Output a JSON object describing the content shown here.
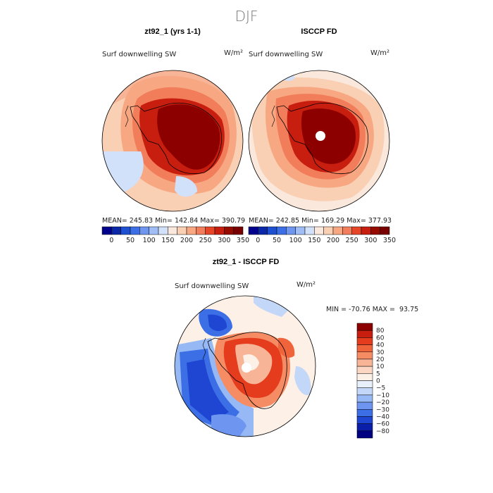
{
  "page": {
    "season": "DJF"
  },
  "panels": [
    {
      "title": "zt92_1 (yrs 1-1)",
      "variable": "Surf downwelling SW",
      "units": "W/m²",
      "stats": {
        "mean_label": "MEAN=",
        "mean": "245.83",
        "min_label": "Min=",
        "min": "142.84",
        "max_label": "Max=",
        "max": "390.79"
      },
      "colorbar": {
        "ticks": [
          "0",
          "50",
          "100",
          "150",
          "200",
          "250",
          "300",
          "350"
        ],
        "colors": [
          "#00008c",
          "#0a28a8",
          "#1e50d2",
          "#3c6ee6",
          "#6e96f0",
          "#a0bef5",
          "#d2e1fa",
          "#fbe8dc",
          "#fad0b4",
          "#f7a882",
          "#f27d5a",
          "#e64628",
          "#c81e0f",
          "#960a00",
          "#780000"
        ]
      }
    },
    {
      "title": "ISCCP FD",
      "variable": "Surf downwelling SW",
      "units": "W/m²",
      "stats": {
        "mean_label": "MEAN=",
        "mean": "242.85",
        "min_label": "Min=",
        "min": "169.29",
        "max_label": "Max=",
        "max": "377.93"
      },
      "colorbar": {
        "ticks": [
          "0",
          "50",
          "100",
          "150",
          "200",
          "250",
          "300",
          "350"
        ],
        "colors": [
          "#00008c",
          "#0a28a8",
          "#1e50d2",
          "#3c6ee6",
          "#6e96f0",
          "#a0bef5",
          "#d2e1fa",
          "#fbe8dc",
          "#fad0b4",
          "#f7a882",
          "#f27d5a",
          "#e64628",
          "#c81e0f",
          "#960a00",
          "#780000"
        ]
      }
    }
  ],
  "difference": {
    "title": "zt92_1 - ISCCP FD",
    "variable": "Surf downwelling SW",
    "units": "W/m²",
    "range_text": "MIN = -70.76 MAX =  93.75",
    "legend": {
      "labels": [
        "80",
        "60",
        "40",
        "30",
        "20",
        "10",
        "5",
        "0",
        "−5",
        "−10",
        "−20",
        "−30",
        "−40",
        "−60",
        "−80"
      ],
      "colors": [
        "#8c0000",
        "#c81e0f",
        "#e63c1e",
        "#f0643c",
        "#f58c64",
        "#f8b496",
        "#fbd7c3",
        "#fdf0e6",
        "#e8f0fb",
        "#c3d7f8",
        "#96b9f5",
        "#6e96f0",
        "#3c6ee6",
        "#1e46d2",
        "#0a1eaa",
        "#000080"
      ]
    }
  }
}
